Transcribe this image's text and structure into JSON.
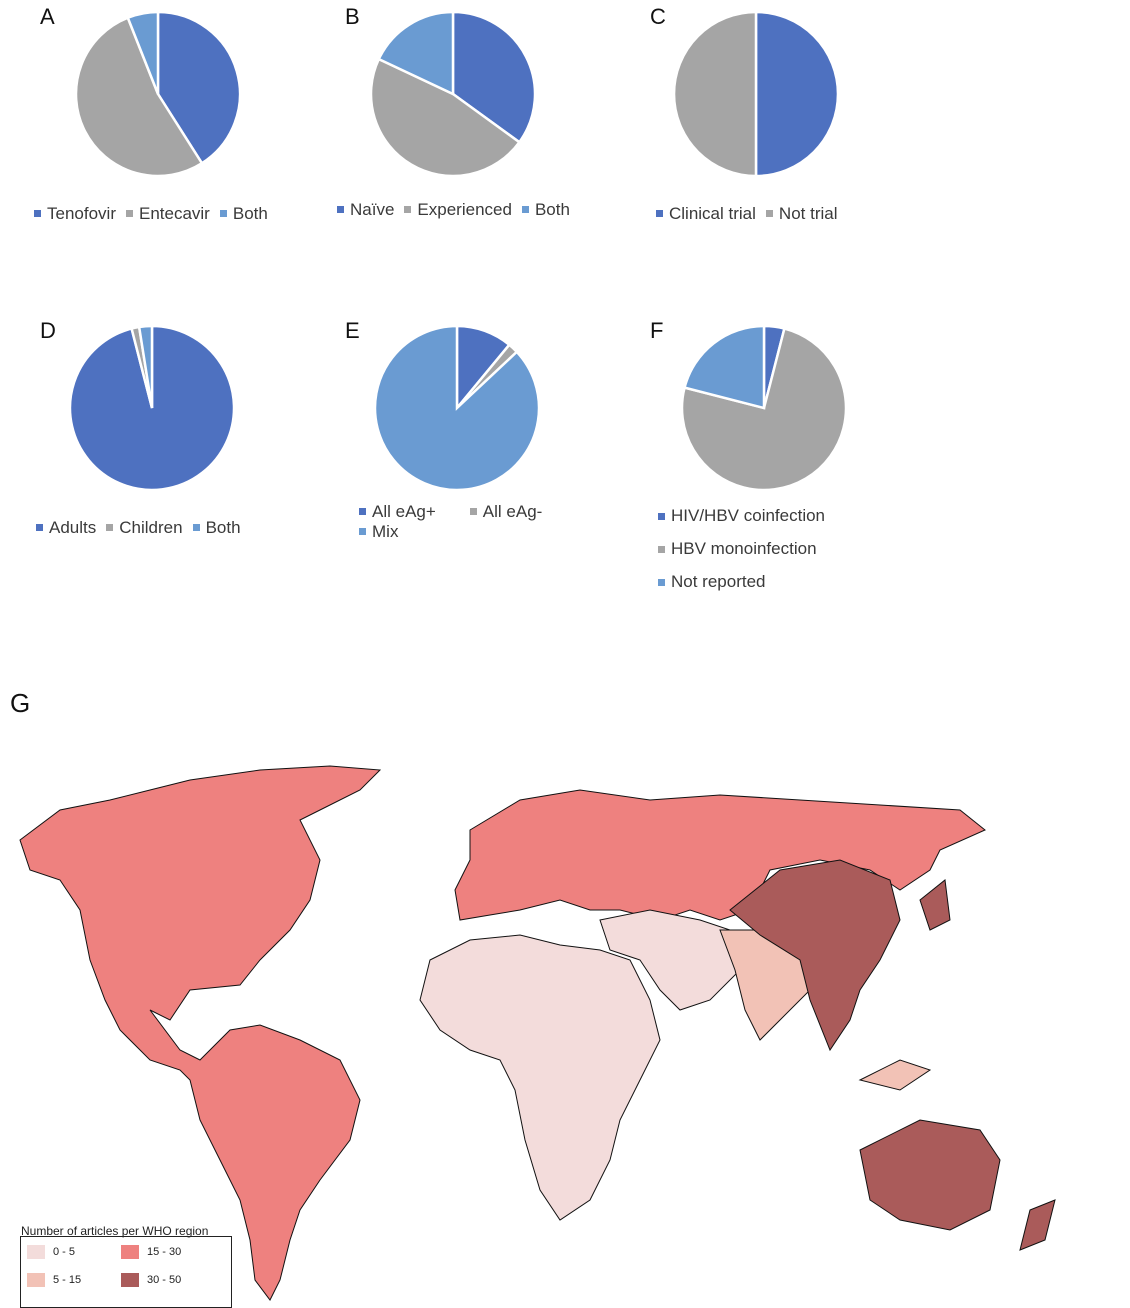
{
  "colors": {
    "blue": "#4e71c0",
    "gray": "#a5a5a5",
    "lightblue": "#6a9bd2",
    "map_0_5": "#f3dcdb",
    "map_5_15": "#f2c2b6",
    "map_15_30": "#ee817f",
    "map_30_50": "#aa5b5a"
  },
  "chart_data": [
    {
      "id": "A",
      "type": "pie",
      "labels": [
        "Tenofovir",
        "Entecavir",
        "Both"
      ],
      "values": [
        41,
        53,
        6
      ]
    },
    {
      "id": "B",
      "type": "pie",
      "labels": [
        "Naïve",
        "Experienced",
        "Both"
      ],
      "values": [
        35,
        47,
        18
      ]
    },
    {
      "id": "C",
      "type": "pie",
      "labels": [
        "Clinical trial",
        "Not trial"
      ],
      "values": [
        50,
        50
      ]
    },
    {
      "id": "D",
      "type": "pie",
      "labels": [
        "Adults",
        "Children",
        "Both"
      ],
      "values": [
        96,
        1.5,
        2.5
      ]
    },
    {
      "id": "E",
      "type": "pie",
      "labels": [
        "All eAg+",
        "All eAg-",
        "Mix"
      ],
      "values": [
        11,
        2,
        87
      ]
    },
    {
      "id": "F",
      "type": "pie",
      "labels": [
        "HIV/HBV coinfection",
        "HBV monoinfection",
        "Not reported"
      ],
      "values": [
        4,
        75,
        21
      ]
    },
    {
      "id": "G",
      "type": "heatmap",
      "legend_title": "Number of articles per WHO region",
      "bins": [
        "0 - 5",
        "5 - 15",
        "15 - 30",
        "30 - 50"
      ],
      "regions": [
        {
          "name": "Americas",
          "bin": "15 - 30"
        },
        {
          "name": "Europe",
          "bin": "15 - 30"
        },
        {
          "name": "Africa",
          "bin": "0 - 5"
        },
        {
          "name": "Eastern Mediterranean",
          "bin": "0 - 5"
        },
        {
          "name": "South-East Asia",
          "bin": "5 - 15"
        },
        {
          "name": "Western Pacific",
          "bin": "30 - 50"
        }
      ]
    }
  ]
}
